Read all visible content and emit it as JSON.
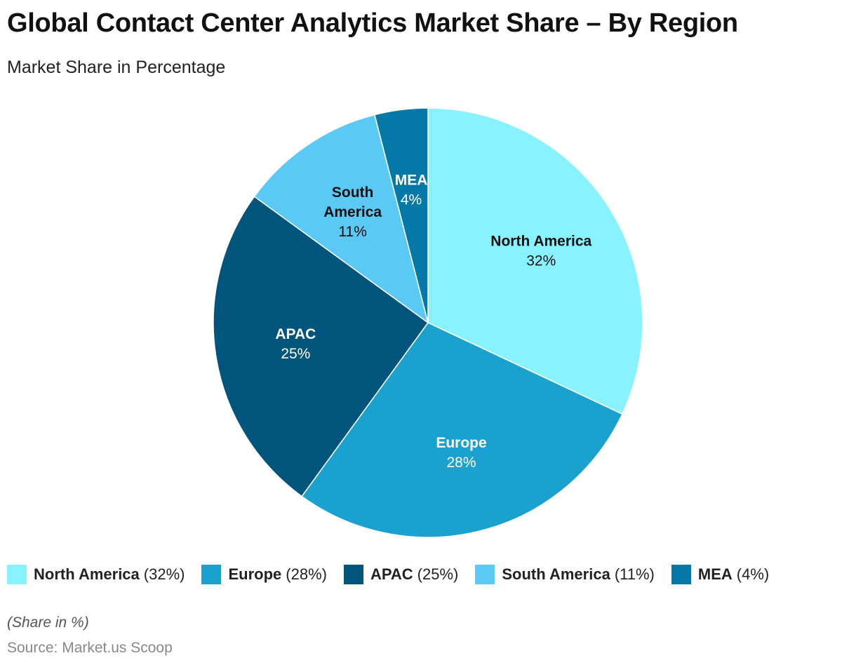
{
  "chart_data": {
    "type": "pie",
    "title": "Global Contact Center Analytics Market Share – By Region",
    "subtitle": "Market Share in Percentage",
    "slices": [
      {
        "label": "North America",
        "value": 32,
        "pct": "32%",
        "legend_pct": "(32%)",
        "color": "#88F3FF",
        "text_color": "#111111"
      },
      {
        "label": "Europe",
        "value": 28,
        "pct": "28%",
        "legend_pct": "(28%)",
        "color": "#1AA1CE",
        "text_color": "#FFFFFF"
      },
      {
        "label": "APAC",
        "value": 25,
        "pct": "25%",
        "legend_pct": "(25%)",
        "color": "#01547B",
        "text_color": "#FFFFFF"
      },
      {
        "label": "South America",
        "value": 11,
        "pct": "11%",
        "legend_pct": "(11%)",
        "color": "#5AC9F6",
        "text_color": "#111111"
      },
      {
        "label": "MEA",
        "value": 4,
        "pct": "4%",
        "legend_pct": "(4%)",
        "color": "#0479A7",
        "text_color": "#FFFFFF"
      }
    ],
    "note": "(Share in %)",
    "source": "Source: Market.us Scoop"
  }
}
